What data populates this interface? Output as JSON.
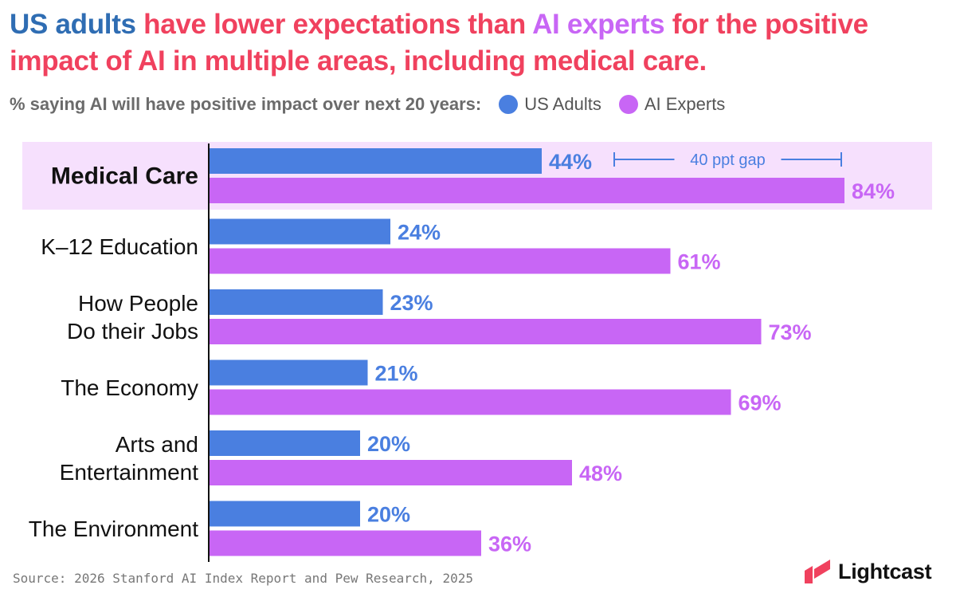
{
  "title": {
    "part1": "US adults",
    "part2": " have lower expectations than ",
    "part3": "AI experts",
    "part4": " for the positive impact of AI in multiple areas, including medical care."
  },
  "legend": {
    "prefix": "% saying AI will have positive impact over next 20 years:",
    "items": [
      "US Adults",
      "AI Experts"
    ]
  },
  "colors": {
    "us_adults": "#4a7fe0",
    "ai_experts": "#c866f5",
    "title_red": "#f0415e",
    "highlight_band": "#f6e0fd"
  },
  "chart_data": {
    "type": "bar",
    "orientation": "horizontal",
    "categories": [
      [
        "Medical Care"
      ],
      [
        "K–12 Education"
      ],
      [
        "How People",
        "Do their Jobs"
      ],
      [
        "The Economy"
      ],
      [
        "Arts and",
        "Entertainment"
      ],
      [
        "The Environment"
      ]
    ],
    "series": [
      {
        "name": "US Adults",
        "values": [
          44,
          24,
          23,
          21,
          20,
          20
        ],
        "labels": [
          "44%",
          "24%",
          "23%",
          "21%",
          "20%",
          "20%"
        ]
      },
      {
        "name": "AI Experts",
        "values": [
          84,
          61,
          73,
          69,
          48,
          36
        ],
        "labels": [
          "84%",
          "61%",
          "73%",
          "69%",
          "48%",
          "36%"
        ]
      }
    ],
    "xlim": [
      0,
      100
    ],
    "highlight_category": 0,
    "annotation": {
      "text": "40 ppt gap",
      "category": 0,
      "from": 44,
      "to": 84
    }
  },
  "source": "Source: 2026 Stanford AI Index Report and Pew Research, 2025",
  "brand": {
    "name": "Lightcast",
    "logo_icon": "lightcast-logo-icon"
  }
}
